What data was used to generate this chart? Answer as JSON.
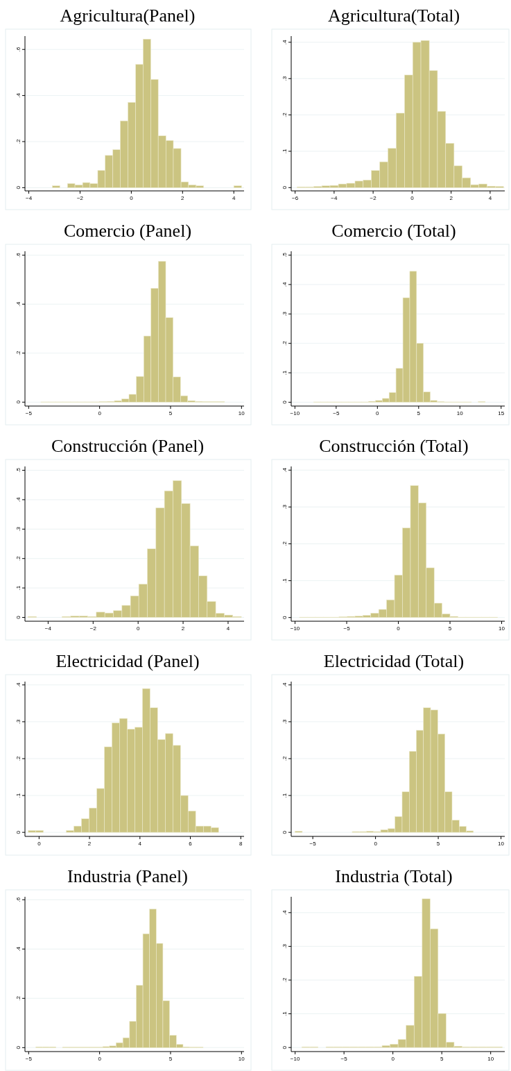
{
  "chart_data": [
    {
      "type": "histogram",
      "title": "Agricultura(Panel)",
      "color": "#cbc481",
      "grid": "y",
      "xlim": [
        -4.15,
        4.4
      ],
      "ylim": [
        -0.014,
        0.658
      ],
      "xticks": [
        -4,
        -2,
        0,
        2,
        4
      ],
      "yticks": [
        {
          "value": 0,
          "label": "0"
        },
        {
          "value": 0.2,
          "label": ".2"
        },
        {
          "value": 0.4,
          "label": ".4"
        },
        {
          "value": 0.6,
          "label": ".6"
        }
      ],
      "bins": [
        -3.08,
        -2.79,
        -2.49,
        -2.2,
        -1.9,
        -1.61,
        -1.31,
        -1.02,
        -0.72,
        -0.43,
        -0.13,
        0.17,
        0.46,
        0.76,
        1.05,
        1.35,
        1.64,
        1.94,
        2.23,
        2.53,
        2.82,
        3.12,
        3.41,
        3.71,
        4.0,
        4.3
      ],
      "values": [
        0.008,
        0,
        0.018,
        0.012,
        0.022,
        0.018,
        0.075,
        0.14,
        0.165,
        0.29,
        0.37,
        0.535,
        0.645,
        0.47,
        0.225,
        0.205,
        0.17,
        0.025,
        0.012,
        0.008,
        0,
        0,
        0,
        0,
        0.008
      ]
    },
    {
      "type": "histogram",
      "title": "Agricultura(Total)",
      "color": "#cbc481",
      "grid": "y",
      "xlim": [
        -6.2,
        4.75
      ],
      "ylim": [
        -0.009,
        0.417
      ],
      "xticks": [
        -6,
        -4,
        -2,
        0,
        2,
        4
      ],
      "yticks": [
        {
          "value": 0,
          "label": "0"
        },
        {
          "value": 0.1,
          "label": ".1"
        },
        {
          "value": 0.2,
          "label": ".2"
        },
        {
          "value": 0.3,
          "label": ".3"
        },
        {
          "value": 0.4,
          "label": ".4"
        }
      ],
      "bins": [
        -5.9,
        -5.48,
        -5.05,
        -4.63,
        -4.21,
        -3.78,
        -3.36,
        -2.93,
        -2.51,
        -2.09,
        -1.66,
        -1.24,
        -0.82,
        -0.39,
        0.03,
        0.45,
        0.88,
        1.3,
        1.72,
        2.15,
        2.57,
        3.0,
        3.42,
        3.84,
        4.27,
        4.69
      ],
      "values": [
        0.002,
        0.002,
        0.003,
        0.005,
        0.006,
        0.01,
        0.012,
        0.018,
        0.021,
        0.047,
        0.071,
        0.108,
        0.205,
        0.31,
        0.4,
        0.405,
        0.322,
        0.21,
        0.122,
        0.06,
        0.027,
        0.008,
        0.01,
        0.004,
        0.003
      ]
    },
    {
      "type": "histogram",
      "title": "Comercio (Panel)",
      "color": "#cbc481",
      "grid": "y",
      "xlim": [
        -5.26,
        10.18
      ],
      "ylim": [
        -0.016,
        0.616
      ],
      "xticks": [
        -5,
        0,
        5,
        10
      ],
      "yticks": [
        {
          "value": 0,
          "label": "0"
        },
        {
          "value": 0.2,
          "label": ".2"
        },
        {
          "value": 0.4,
          "label": ".4"
        },
        {
          "value": 0.6,
          "label": ".6"
        }
      ],
      "bins": [
        -4.14,
        -3.62,
        -3.11,
        -2.59,
        -2.07,
        -1.55,
        -1.03,
        -0.52,
        0.0,
        0.52,
        1.04,
        1.55,
        2.07,
        2.59,
        3.11,
        3.62,
        4.14,
        4.66,
        5.18,
        5.7,
        6.21,
        6.73,
        7.25,
        7.76,
        8.28,
        8.8
      ],
      "values": [
        0.001,
        0.001,
        0.001,
        0.001,
        0.001,
        0.001,
        0.001,
        0.001,
        0.002,
        0.003,
        0.006,
        0.013,
        0.032,
        0.105,
        0.27,
        0.465,
        0.575,
        0.345,
        0.103,
        0.026,
        0.006,
        0.003,
        0.002,
        0.002,
        0.002
      ]
    },
    {
      "type": "histogram",
      "title": "Comercio (Total)",
      "color": "#cbc481",
      "grid": "y",
      "xlim": [
        -10.45,
        15.44
      ],
      "ylim": [
        -0.013,
        0.513
      ],
      "xticks": [
        -10,
        -5,
        0,
        5,
        10,
        15
      ],
      "yticks": [
        {
          "value": 0,
          "label": "0"
        },
        {
          "value": 0.1,
          "label": ".1"
        },
        {
          "value": 0.2,
          "label": ".2"
        },
        {
          "value": 0.3,
          "label": ".3"
        },
        {
          "value": 0.4,
          "label": ".4"
        },
        {
          "value": 0.5,
          "label": ".5"
        }
      ],
      "bins": [
        -7.72,
        -6.89,
        -6.06,
        -5.23,
        -4.39,
        -3.56,
        -2.73,
        -1.9,
        -1.07,
        -0.24,
        0.59,
        1.42,
        2.25,
        3.09,
        3.92,
        4.75,
        5.58,
        6.41,
        7.24,
        8.07,
        8.9,
        9.74,
        10.57,
        11.4,
        12.23,
        13.06
      ],
      "values": [
        0.001,
        0.001,
        0.001,
        0.001,
        0.001,
        0.001,
        0.001,
        0.001,
        0.003,
        0.006,
        0.013,
        0.033,
        0.115,
        0.355,
        0.445,
        0.2,
        0.035,
        0.006,
        0.002,
        0.001,
        0.001,
        0.001,
        0.001,
        0,
        0.002
      ]
    },
    {
      "type": "histogram",
      "title": "Construcción (Panel)",
      "color": "#cbc481",
      "grid": "y",
      "xlim": [
        -5.03,
        4.71
      ],
      "ylim": [
        -0.013,
        0.513
      ],
      "xticks": [
        -4,
        -2,
        0,
        2,
        4
      ],
      "yticks": [
        {
          "value": 0,
          "label": "0"
        },
        {
          "value": 0.1,
          "label": ".1"
        },
        {
          "value": 0.2,
          "label": ".2"
        },
        {
          "value": 0.3,
          "label": ".3"
        },
        {
          "value": 0.4,
          "label": ".4"
        },
        {
          "value": 0.5,
          "label": ".5"
        }
      ],
      "bins": [
        -4.9,
        -4.52,
        -4.14,
        -3.76,
        -3.38,
        -3.0,
        -2.62,
        -2.24,
        -1.86,
        -1.48,
        -1.1,
        -0.72,
        -0.34,
        0.03,
        0.41,
        0.79,
        1.17,
        1.55,
        1.93,
        2.31,
        2.69,
        3.07,
        3.45,
        3.83,
        4.21,
        4.59
      ],
      "values": [
        0.003,
        0,
        0,
        0,
        0.003,
        0.005,
        0.005,
        0.003,
        0.018,
        0.015,
        0.023,
        0.041,
        0.073,
        0.113,
        0.233,
        0.372,
        0.43,
        0.465,
        0.387,
        0.243,
        0.141,
        0.054,
        0.014,
        0.008,
        0.003
      ]
    },
    {
      "type": "histogram",
      "title": "Construcción (Total)",
      "color": "#cbc481",
      "grid": "y",
      "xlim": [
        -10.37,
        10.3
      ],
      "ylim": [
        -0.01,
        0.41
      ],
      "xticks": [
        -10,
        -5,
        0,
        5,
        10
      ],
      "yticks": [
        {
          "value": 0,
          "label": "0"
        },
        {
          "value": 0.1,
          "label": ".1"
        },
        {
          "value": 0.2,
          "label": ".2"
        },
        {
          "value": 0.3,
          "label": ".3"
        },
        {
          "value": 0.4,
          "label": ".4"
        }
      ],
      "bins": [
        -9.57,
        -8.8,
        -8.04,
        -7.27,
        -6.5,
        -5.74,
        -4.97,
        -4.2,
        -3.44,
        -2.67,
        -1.9,
        -1.14,
        -0.37,
        0.4,
        1.17,
        1.93,
        2.7,
        3.47,
        4.23,
        5.0,
        5.77,
        6.53,
        7.3,
        8.07,
        8.83,
        9.6
      ],
      "values": [
        0.001,
        0.001,
        0.001,
        0.001,
        0.001,
        0.002,
        0.003,
        0.004,
        0.006,
        0.012,
        0.022,
        0.048,
        0.115,
        0.243,
        0.358,
        0.311,
        0.135,
        0.039,
        0.01,
        0.003,
        0.001,
        0.001,
        0.001,
        0.001,
        0.001
      ]
    },
    {
      "type": "histogram",
      "title": "Electricidad (Panel)",
      "color": "#cbc481",
      "grid": "y",
      "xlim": [
        -0.56,
        8.13
      ],
      "ylim": [
        -0.011,
        0.409
      ],
      "xticks": [
        0,
        2,
        4,
        6,
        8
      ],
      "yticks": [
        {
          "value": 0,
          "label": "0"
        },
        {
          "value": 0.1,
          "label": ".1"
        },
        {
          "value": 0.2,
          "label": ".2"
        },
        {
          "value": 0.3,
          "label": ".3"
        },
        {
          "value": 0.4,
          "label": ".4"
        }
      ],
      "bins": [
        -0.43,
        -0.13,
        0.17,
        0.48,
        0.78,
        1.08,
        1.38,
        1.68,
        1.99,
        2.29,
        2.59,
        2.89,
        3.19,
        3.5,
        3.8,
        4.1,
        4.4,
        4.7,
        5.01,
        5.31,
        5.61,
        5.91,
        6.21,
        6.52,
        6.82,
        7.12
      ],
      "values": [
        0.005,
        0.005,
        0,
        0,
        0,
        0.005,
        0.017,
        0.037,
        0.066,
        0.119,
        0.232,
        0.297,
        0.309,
        0.28,
        0.285,
        0.39,
        0.338,
        0.252,
        0.268,
        0.236,
        0.1,
        0.058,
        0.017,
        0.017,
        0.013
      ]
    },
    {
      "type": "histogram",
      "title": "Electricidad (Total)",
      "color": "#cbc481",
      "grid": "y",
      "xlim": [
        -6.72,
        10.3
      ],
      "ylim": [
        -0.011,
        0.409
      ],
      "xticks": [
        -5,
        0,
        5,
        10
      ],
      "yticks": [
        {
          "value": 0,
          "label": "0"
        },
        {
          "value": 0.1,
          "label": ".1"
        },
        {
          "value": 0.2,
          "label": ".2"
        },
        {
          "value": 0.3,
          "label": ".3"
        },
        {
          "value": 0.4,
          "label": ".4"
        }
      ],
      "bins": [
        -6.41,
        -5.84,
        -5.27,
        -4.7,
        -4.14,
        -3.57,
        -3.0,
        -2.43,
        -1.86,
        -1.29,
        -0.73,
        -0.16,
        0.41,
        0.98,
        1.55,
        2.12,
        2.69,
        3.25,
        3.82,
        4.39,
        4.96,
        5.53,
        6.1,
        6.67,
        7.23,
        7.8
      ],
      "values": [
        0.003,
        0,
        0,
        0,
        0,
        0,
        0,
        0,
        0.002,
        0.002,
        0.003,
        0.002,
        0.007,
        0.01,
        0.043,
        0.11,
        0.22,
        0.277,
        0.338,
        0.332,
        0.267,
        0.11,
        0.033,
        0.016,
        0.004
      ]
    },
    {
      "type": "histogram",
      "title": "Industria (Panel)",
      "color": "#cbc481",
      "grid": "y",
      "xlim": [
        -5.26,
        10.18
      ],
      "ylim": [
        -0.016,
        0.612
      ],
      "xticks": [
        -5,
        0,
        5,
        10
      ],
      "yticks": [
        {
          "value": 0,
          "label": "0"
        },
        {
          "value": 0.2,
          "label": ".2"
        },
        {
          "value": 0.4,
          "label": ".4"
        },
        {
          "value": 0.6,
          "label": ".6"
        }
      ],
      "bins": [
        -4.49,
        -4.02,
        -3.55,
        -3.08,
        -2.61,
        -2.13,
        -1.66,
        -1.19,
        -0.72,
        -0.25,
        0.22,
        0.69,
        1.16,
        1.64,
        2.11,
        2.58,
        3.05,
        3.52,
        3.99,
        4.46,
        4.93,
        5.41,
        5.88,
        6.35,
        6.82,
        7.29
      ],
      "values": [
        0.003,
        0.003,
        0.003,
        0,
        0.002,
        0.002,
        0.002,
        0.002,
        0.002,
        0.002,
        0.004,
        0.007,
        0.02,
        0.04,
        0.107,
        0.253,
        0.462,
        0.562,
        0.423,
        0.19,
        0.05,
        0.013,
        0.003,
        0.002,
        0.002
      ]
    },
    {
      "type": "histogram",
      "title": "Industria (Total)",
      "color": "#cbc481",
      "grid": "y",
      "xlim": [
        -10.4,
        11.44
      ],
      "ylim": [
        -0.012,
        0.447
      ],
      "xticks": [
        -10,
        -5,
        0,
        5,
        10
      ],
      "yticks": [
        {
          "value": 0,
          "label": "0"
        },
        {
          "value": 0.1,
          "label": ".1"
        },
        {
          "value": 0.2,
          "label": ".2"
        },
        {
          "value": 0.3,
          "label": ".3"
        },
        {
          "value": 0.4,
          "label": ".4"
        }
      ],
      "bins": [
        -9.3,
        -8.48,
        -7.66,
        -6.84,
        -6.02,
        -5.2,
        -4.38,
        -3.57,
        -2.75,
        -1.93,
        -1.11,
        -0.29,
        0.53,
        1.35,
        2.17,
        2.99,
        3.81,
        4.62,
        5.44,
        6.26,
        7.08,
        7.9,
        8.72,
        9.54,
        10.36,
        11.18
      ],
      "values": [
        0.002,
        0.002,
        0,
        0.002,
        0.002,
        0.002,
        0.002,
        0.002,
        0.002,
        0.002,
        0.006,
        0.01,
        0.024,
        0.066,
        0.211,
        0.441,
        0.352,
        0.101,
        0.016,
        0.004,
        0.002,
        0.002,
        0.002,
        0.002,
        0.002
      ]
    }
  ]
}
